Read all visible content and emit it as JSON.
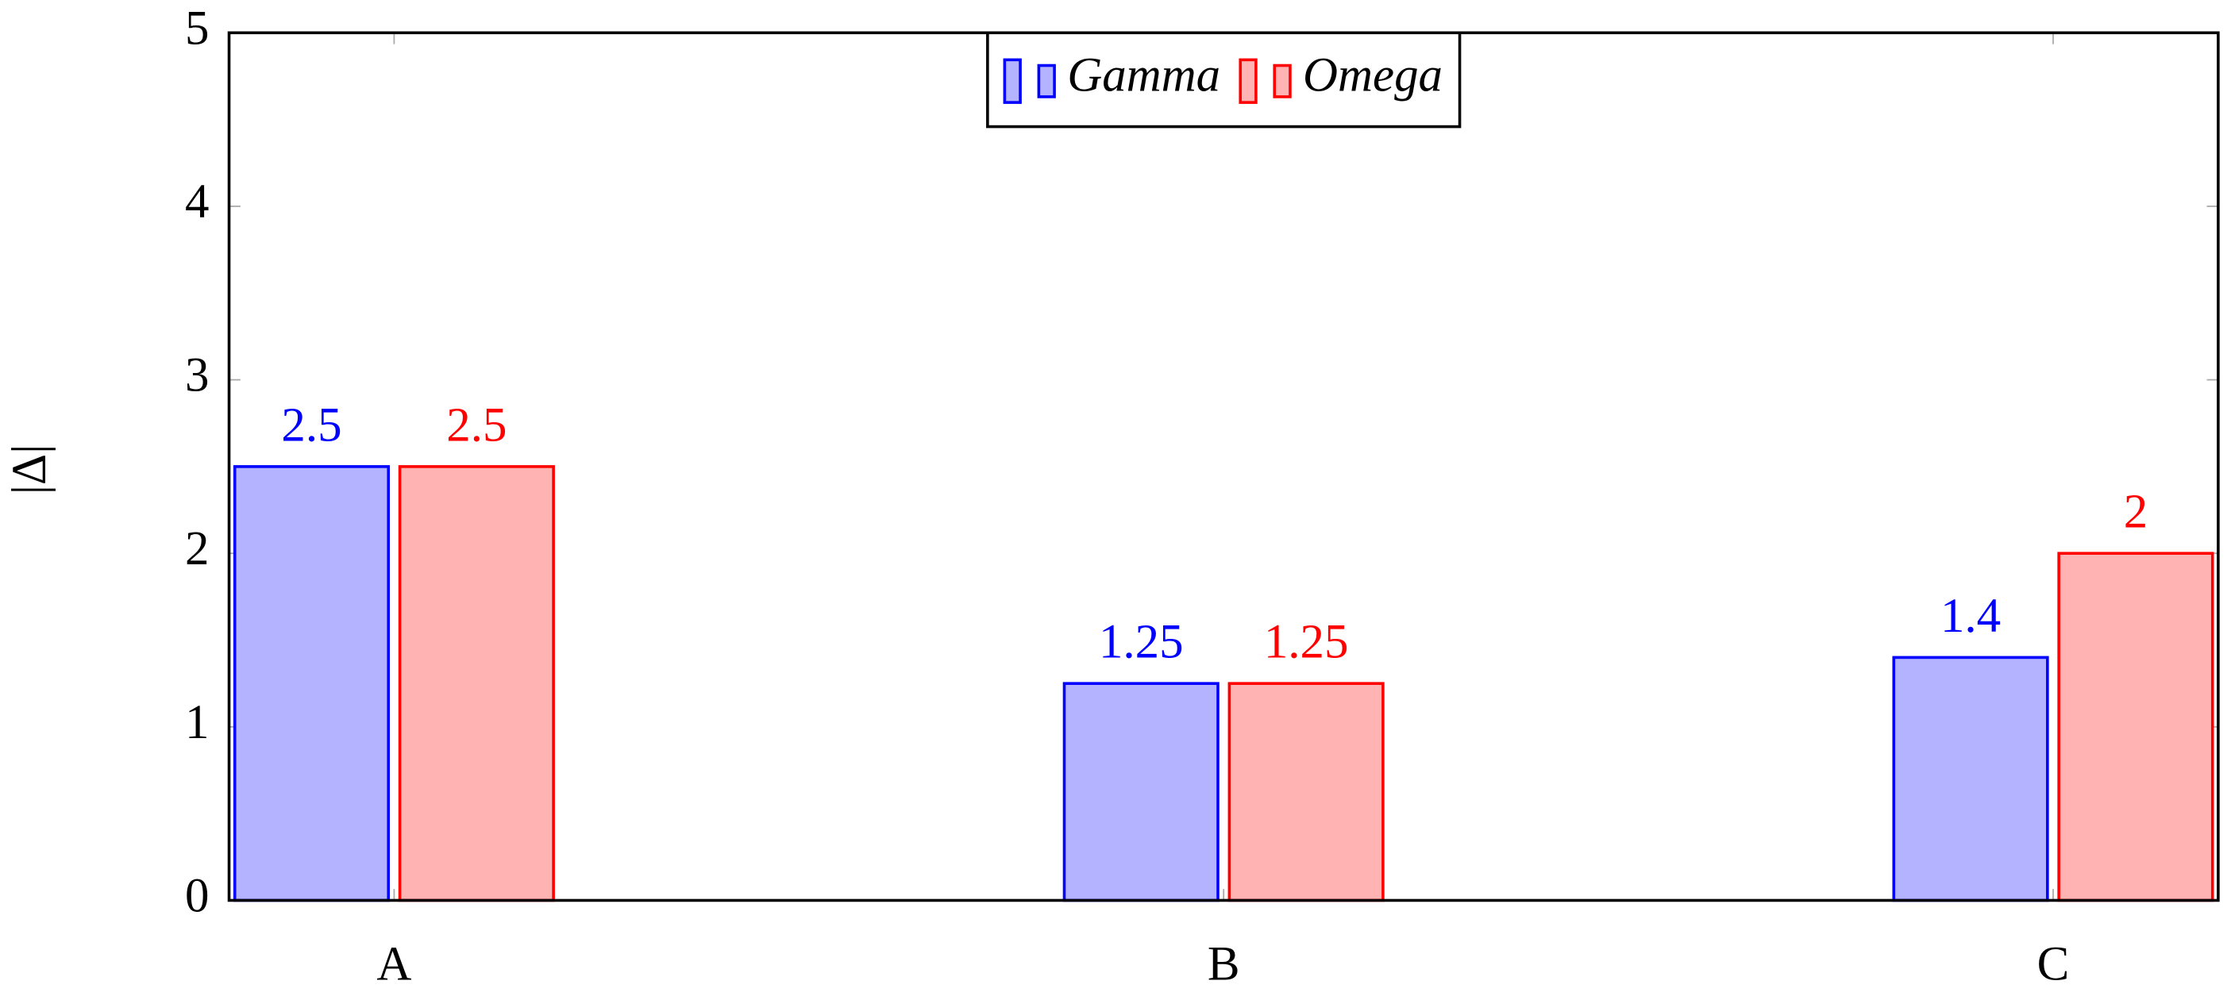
{
  "chart_data": {
    "type": "bar",
    "y_label": "|Δ|",
    "categories": [
      "A",
      "B",
      "C"
    ],
    "series": [
      {
        "name": "Gamma",
        "color": "#0000ff",
        "fill": "#b3b3ff",
        "values": [
          2.5,
          1.25,
          1.4
        ]
      },
      {
        "name": "Omega",
        "color": "#ff0000",
        "fill": "#ffb3b3",
        "values": [
          2.5,
          1.25,
          2
        ]
      }
    ],
    "ylim": [
      0,
      5
    ],
    "yticks": [
      0,
      1,
      2,
      3,
      4,
      5
    ],
    "legend": "top"
  }
}
